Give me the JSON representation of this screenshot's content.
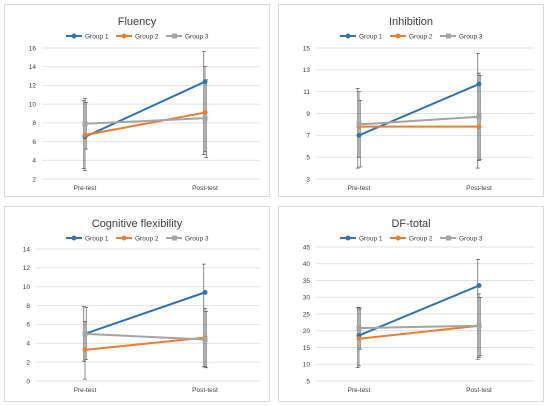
{
  "colors": {
    "Group 1": "#2e75b6",
    "Group 2": "#ed7d31",
    "Group 3": "#a5a5a5",
    "grid": "#d9d9d9",
    "error_bar": "#404040"
  },
  "chart_data": [
    {
      "type": "line",
      "title": "Fluency",
      "categories": [
        "Pre-test",
        "Post-test"
      ],
      "ylim": [
        2,
        16
      ],
      "yticks": [
        2,
        4,
        6,
        8,
        10,
        12,
        14,
        16
      ],
      "grid": true,
      "legend": "top",
      "series": [
        {
          "name": "Group 1",
          "values": [
            6.5,
            12.4
          ],
          "err_low": [
            3.1,
            4.6
          ],
          "err_high": [
            10.4,
            15.6
          ]
        },
        {
          "name": "Group 2",
          "values": [
            6.7,
            9.1
          ],
          "err_low": [
            2.9,
            4.9
          ],
          "err_high": [
            10.6,
            14.0
          ]
        },
        {
          "name": "Group 3",
          "values": [
            7.9,
            8.5
          ],
          "err_low": [
            5.2,
            4.3
          ],
          "err_high": [
            10.2,
            12.6
          ]
        }
      ]
    },
    {
      "type": "line",
      "title": "Inhibition",
      "categories": [
        "Pre-test",
        "Post-test"
      ],
      "ylim": [
        3,
        15
      ],
      "yticks": [
        3,
        5,
        7,
        9,
        11,
        13,
        15
      ],
      "grid": true,
      "legend": "top",
      "series": [
        {
          "name": "Group 1",
          "values": [
            7.0,
            11.7
          ],
          "err_low": [
            4.0,
            4.0
          ],
          "err_high": [
            11.3,
            14.5
          ]
        },
        {
          "name": "Group 2",
          "values": [
            7.8,
            7.8
          ],
          "err_low": [
            5.0,
            4.7
          ],
          "err_high": [
            11.0,
            12.7
          ]
        },
        {
          "name": "Group 3",
          "values": [
            8.0,
            8.7
          ],
          "err_low": [
            4.1,
            4.8
          ],
          "err_high": [
            10.2,
            12.5
          ]
        }
      ]
    },
    {
      "type": "line",
      "title": "Cognitive flexibility",
      "categories": [
        "Pre-test",
        "Post-test"
      ],
      "ylim": [
        0,
        14
      ],
      "yticks": [
        0,
        2,
        4,
        6,
        8,
        10,
        12,
        14
      ],
      "grid": true,
      "legend": "top",
      "series": [
        {
          "name": "Group 1",
          "values": [
            5.0,
            9.4
          ],
          "err_low": [
            2.1,
            1.5
          ],
          "err_high": [
            7.9,
            12.4
          ]
        },
        {
          "name": "Group 2",
          "values": [
            3.3,
            4.6
          ],
          "err_low": [
            0.2,
            1.5
          ],
          "err_high": [
            6.3,
            7.7
          ]
        },
        {
          "name": "Group 3",
          "values": [
            5.0,
            4.4
          ],
          "err_low": [
            2.3,
            1.4
          ],
          "err_high": [
            7.8,
            7.4
          ]
        }
      ]
    },
    {
      "type": "line",
      "title": "DF-total",
      "categories": [
        "Pre-test",
        "Post-test"
      ],
      "ylim": [
        5,
        45
      ],
      "yticks": [
        5,
        10,
        15,
        20,
        25,
        30,
        35,
        40,
        45
      ],
      "grid": true,
      "legend": "top",
      "series": [
        {
          "name": "Group 1",
          "values": [
            18.6,
            33.5
          ],
          "err_low": [
            9.0,
            11.5
          ],
          "err_high": [
            27.0,
            41.3
          ]
        },
        {
          "name": "Group 2",
          "values": [
            17.6,
            21.5
          ],
          "err_low": [
            9.5,
            12.0
          ],
          "err_high": [
            26.5,
            31.0
          ]
        },
        {
          "name": "Group 3",
          "values": [
            20.8,
            21.5
          ],
          "err_low": [
            14.5,
            12.5
          ],
          "err_high": [
            26.8,
            30.0
          ]
        }
      ]
    }
  ]
}
